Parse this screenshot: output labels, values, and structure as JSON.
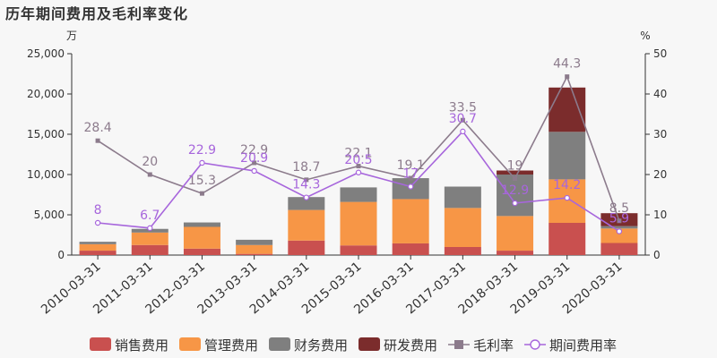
{
  "chart_data": {
    "type": "bar",
    "title": "历年期间费用及毛利率变化",
    "left_unit": "万",
    "right_unit": "%",
    "categories": [
      "2010-03-31",
      "2011-03-31",
      "2012-03-31",
      "2013-03-31",
      "2014-03-31",
      "2015-03-31",
      "2016-03-31",
      "2017-03-31",
      "2018-03-31",
      "2019-03-31",
      "2020-03-31"
    ],
    "left_axis": {
      "min": 0,
      "max": 25000,
      "ticks": [
        "0",
        "5,000",
        "10,000",
        "15,000",
        "20,000",
        "25,000"
      ]
    },
    "right_axis": {
      "min": 0,
      "max": 50,
      "ticks": [
        "0",
        "10",
        "20",
        "30",
        "40",
        "50"
      ]
    },
    "stacked_bars": [
      {
        "name": "销售费用",
        "color": "#c9504f",
        "values": [
          550,
          1250,
          800,
          150,
          1800,
          1200,
          1450,
          1000,
          550,
          4000,
          1500
        ]
      },
      {
        "name": "管理费用",
        "color": "#f79646",
        "values": [
          800,
          1550,
          2700,
          1100,
          3800,
          5400,
          5500,
          4850,
          4300,
          5400,
          1800
        ]
      },
      {
        "name": "财务费用",
        "color": "#7f7f7f",
        "values": [
          300,
          450,
          550,
          650,
          1600,
          1800,
          2600,
          2650,
          5150,
          5900,
          300
        ]
      },
      {
        "name": "研发费用",
        "color": "#7b2c2c",
        "values": [
          0,
          0,
          0,
          0,
          0,
          0,
          0,
          0,
          500,
          5500,
          1600
        ]
      }
    ],
    "lines": [
      {
        "name": "毛利率",
        "color": "#8c7b8c",
        "values": [
          28.4,
          20,
          15.3,
          22.9,
          18.7,
          22.1,
          19.1,
          33.5,
          19,
          44.3,
          8.5
        ],
        "labels": [
          "28.4",
          "20",
          "15.3",
          "22.9",
          "18.7",
          "22.1",
          "19.1",
          "33.5",
          "19",
          "44.3",
          "8.5"
        ]
      },
      {
        "name": "期间费用率",
        "color": "#a766dc",
        "values": [
          8,
          6.7,
          22.9,
          20.9,
          14.3,
          20.5,
          17,
          30.7,
          12.9,
          14.2,
          5.9
        ],
        "labels": [
          "8",
          "6.7",
          "22.9",
          "20.9",
          "14.3",
          "20.5",
          "17",
          "30.7",
          "12.9",
          "14.2",
          "5.9"
        ]
      }
    ]
  }
}
